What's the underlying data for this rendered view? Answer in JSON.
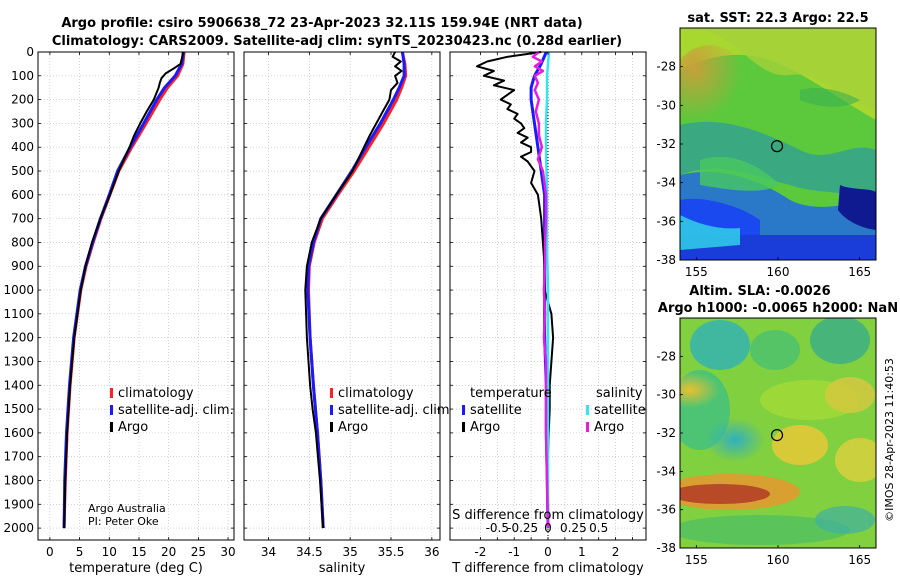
{
  "header": {
    "title_line1": "Argo profile: csiro 5906638_72 23-Apr-2023 32.11S 159.94E (NRT data)",
    "title_line2": "Climatology: CARS2009. Satellite-adj clim: synTS_20230423.nc (0.28d earlier)"
  },
  "credits": {
    "line1": "Argo Australia",
    "line2": "PI: Peter Oke",
    "side": "©IMOS 28-Apr-2023 11:40:53"
  },
  "colors": {
    "climatology": "#ff2020",
    "satellite_adj": "#1a1aff",
    "argo": "#000000",
    "satellite_s": "#33e6f0",
    "argo_s": "#e020e0",
    "grid": "#b8b8c8"
  },
  "chart_data": [
    {
      "id": "temperature",
      "type": "line",
      "xlabel": "temperature (deg C)",
      "ylabel": "",
      "xlim": [
        -2,
        31
      ],
      "ylim": [
        2050,
        0
      ],
      "xticks": [
        0,
        5,
        10,
        15,
        20,
        25,
        30
      ],
      "yticks": [
        0,
        100,
        200,
        300,
        400,
        500,
        600,
        700,
        800,
        900,
        1000,
        1100,
        1200,
        1300,
        1400,
        1500,
        1600,
        1700,
        1800,
        1900,
        2000
      ],
      "grid": true,
      "legend": [
        "climatology",
        "satellite-adj. clim.",
        "Argo"
      ],
      "legend_position": "bottom-right",
      "series": [
        {
          "name": "climatology",
          "depth": [
            0,
            50,
            100,
            150,
            200,
            300,
            400,
            500,
            600,
            700,
            800,
            900,
            1000,
            1200,
            1400,
            1600,
            1800,
            2000
          ],
          "values": [
            22.6,
            22.4,
            21.5,
            19.8,
            18.5,
            16.2,
            13.8,
            11.6,
            10.1,
            8.6,
            7.3,
            6.1,
            5.2,
            4.1,
            3.4,
            2.9,
            2.6,
            2.4
          ]
        },
        {
          "name": "satellite-adj. clim.",
          "depth": [
            0,
            50,
            100,
            150,
            200,
            300,
            400,
            500,
            600,
            700,
            800,
            900,
            1000,
            1200,
            1400,
            1600,
            1800,
            2000
          ],
          "values": [
            22.5,
            22.2,
            21.1,
            19.3,
            18.0,
            15.8,
            13.5,
            11.4,
            10.0,
            8.5,
            7.2,
            6.0,
            5.1,
            4.0,
            3.3,
            2.8,
            2.5,
            2.4
          ]
        },
        {
          "name": "Argo",
          "depth": [
            0,
            20,
            50,
            70,
            90,
            110,
            130,
            150,
            200,
            250,
            300,
            350,
            400,
            450,
            500,
            600,
            700,
            800,
            900,
            1000,
            1200,
            1400,
            1600,
            1800,
            2000
          ],
          "values": [
            22.4,
            22.3,
            22.0,
            20.8,
            19.5,
            18.8,
            18.5,
            18.3,
            17.5,
            16.3,
            15.2,
            14.2,
            13.4,
            12.5,
            11.6,
            10.1,
            8.5,
            7.1,
            6.0,
            5.2,
            4.1,
            3.4,
            2.9,
            2.6,
            2.4
          ]
        }
      ]
    },
    {
      "id": "salinity",
      "type": "line",
      "xlabel": "salinity",
      "xlim": [
        33.7,
        36.1
      ],
      "ylim": [
        2050,
        0
      ],
      "xticks": [
        34,
        34.5,
        35,
        35.5,
        36
      ],
      "grid": true,
      "legend": [
        "climatology",
        "satellite-adj. clim.",
        "Argo"
      ],
      "legend_position": "bottom-right",
      "series": [
        {
          "name": "climatology",
          "depth": [
            0,
            50,
            100,
            150,
            200,
            300,
            400,
            500,
            600,
            700,
            800,
            900,
            1000,
            1200,
            1400,
            1600,
            1800,
            2000
          ],
          "values": [
            35.64,
            35.67,
            35.68,
            35.63,
            35.57,
            35.41,
            35.23,
            35.05,
            34.85,
            34.66,
            34.56,
            34.5,
            34.49,
            34.51,
            34.55,
            34.6,
            34.64,
            34.67
          ]
        },
        {
          "name": "satellite-adj. clim.",
          "depth": [
            0,
            50,
            100,
            150,
            200,
            300,
            400,
            500,
            600,
            700,
            800,
            900,
            1000,
            1200,
            1400,
            1600,
            1800,
            2000
          ],
          "values": [
            35.64,
            35.66,
            35.66,
            35.6,
            35.53,
            35.37,
            35.19,
            35.02,
            34.83,
            34.64,
            34.55,
            34.49,
            34.48,
            34.51,
            34.55,
            34.6,
            34.64,
            34.67
          ]
        },
        {
          "name": "Argo",
          "depth": [
            0,
            20,
            40,
            60,
            80,
            100,
            130,
            160,
            200,
            250,
            300,
            350,
            400,
            450,
            500,
            600,
            700,
            800,
            900,
            1000,
            1100,
            1200,
            1300,
            1400,
            1500,
            1600,
            1800,
            2000
          ],
          "values": [
            35.55,
            35.52,
            35.62,
            35.55,
            35.63,
            35.55,
            35.58,
            35.5,
            35.48,
            35.4,
            35.32,
            35.24,
            35.17,
            35.1,
            35.03,
            34.83,
            34.64,
            34.53,
            34.47,
            34.45,
            34.46,
            34.47,
            34.49,
            34.51,
            34.54,
            34.58,
            34.63,
            34.67
          ]
        }
      ]
    },
    {
      "id": "differences",
      "type": "line",
      "xlabel": "T difference from climatology",
      "x2label": "S difference from climatology",
      "xlim": [
        -2.9,
        2.9
      ],
      "ylim": [
        2050,
        0
      ],
      "xticks": [
        -2,
        -1.5,
        -1,
        -0.5,
        0,
        0.5,
        1,
        1.5,
        2,
        2.5
      ],
      "xticklabels": [
        "-2",
        "",
        "-1",
        "",
        "0",
        "",
        "1",
        "",
        "2",
        ""
      ],
      "s_xticklabels": [
        "-0.5",
        "-0.25",
        "0",
        "0.25",
        "0.5"
      ],
      "grid": true,
      "legend_temperature_title": "temperature",
      "legend_salinity_title": "salinity",
      "legend_temperature": [
        "satellite",
        "Argo"
      ],
      "legend_salinity": [
        "satellite",
        "Argo"
      ],
      "series": [
        {
          "name": "T satellite",
          "depth": [
            0,
            50,
            100,
            150,
            200,
            300,
            400,
            500,
            600,
            700,
            800,
            1000,
            1200,
            1400,
            1600,
            1800,
            2000
          ],
          "values": [
            -0.05,
            -0.2,
            -0.4,
            -0.5,
            -0.5,
            -0.4,
            -0.3,
            -0.2,
            -0.1,
            -0.1,
            -0.1,
            -0.1,
            -0.1,
            -0.05,
            -0.05,
            -0.02,
            0
          ]
        },
        {
          "name": "T Argo",
          "depth": [
            0,
            20,
            40,
            60,
            80,
            100,
            120,
            140,
            160,
            180,
            200,
            220,
            240,
            260,
            280,
            300,
            320,
            340,
            360,
            380,
            400,
            420,
            440,
            460,
            480,
            500,
            550,
            600,
            650,
            700,
            800,
            900,
            1000,
            1100,
            1200,
            1300,
            1400,
            1500,
            1600,
            1700,
            1800,
            1900,
            2000
          ],
          "values": [
            -0.2,
            -1.2,
            -1.8,
            -2.1,
            -1.6,
            -1.9,
            -1.3,
            -1.6,
            -1.0,
            -1.2,
            -1.4,
            -1.1,
            -1.2,
            -0.9,
            -1.0,
            -0.8,
            -0.7,
            -0.9,
            -0.6,
            -0.8,
            -0.5,
            -0.5,
            -0.8,
            -0.6,
            -0.5,
            -0.4,
            -0.5,
            -0.3,
            -0.25,
            -0.2,
            -0.15,
            -0.1,
            -0.1,
            0.1,
            0.15,
            0.1,
            0.05,
            0.05,
            0.02,
            0,
            0,
            0,
            0
          ]
        },
        {
          "name": "S satellite",
          "depth": [
            0,
            50,
            100,
            200,
            300,
            400,
            600,
            800,
            1000,
            1200,
            1400,
            1600,
            1800,
            2000
          ],
          "values": [
            0.01,
            0.0,
            -0.01,
            -0.01,
            -0.02,
            -0.02,
            -0.01,
            -0.01,
            0,
            0,
            0,
            0,
            0,
            0
          ]
        },
        {
          "name": "S Argo",
          "depth": [
            0,
            20,
            40,
            60,
            80,
            100,
            130,
            160,
            200,
            250,
            300,
            350,
            400,
            450,
            500,
            600,
            700,
            800,
            900,
            1000,
            1100,
            1200,
            1300,
            1400,
            1600,
            1800,
            2000
          ],
          "values": [
            -0.09,
            -0.15,
            -0.06,
            -0.13,
            -0.05,
            -0.13,
            -0.1,
            -0.13,
            -0.09,
            -0.12,
            -0.09,
            -0.09,
            -0.06,
            -0.1,
            -0.05,
            -0.02,
            -0.02,
            -0.03,
            -0.03,
            -0.04,
            -0.03,
            -0.04,
            -0.02,
            -0.02,
            -0.02,
            -0.01,
            0
          ]
        }
      ]
    },
    {
      "id": "sst_map",
      "type": "heatmap",
      "title": "sat. SST: 22.3 Argo: 22.5",
      "xlim": [
        154,
        166
      ],
      "ylim": [
        -38,
        -26
      ],
      "xticks": [
        155,
        160,
        165
      ],
      "yticks": [
        -28,
        -30,
        -32,
        -34,
        -36,
        -38
      ],
      "marker": {
        "lon": 159.94,
        "lat": -32.11
      }
    },
    {
      "id": "sla_map",
      "type": "heatmap",
      "title_line1": "Altim. SLA: -0.0026",
      "title_line2": "Argo h1000: -0.0065 h2000: NaN",
      "xlim": [
        154,
        166
      ],
      "ylim": [
        -38,
        -26
      ],
      "xticks": [
        155,
        160,
        165
      ],
      "yticks": [
        -28,
        -30,
        -32,
        -34,
        -36,
        -38
      ],
      "marker": {
        "lon": 159.94,
        "lat": -32.11
      }
    }
  ]
}
